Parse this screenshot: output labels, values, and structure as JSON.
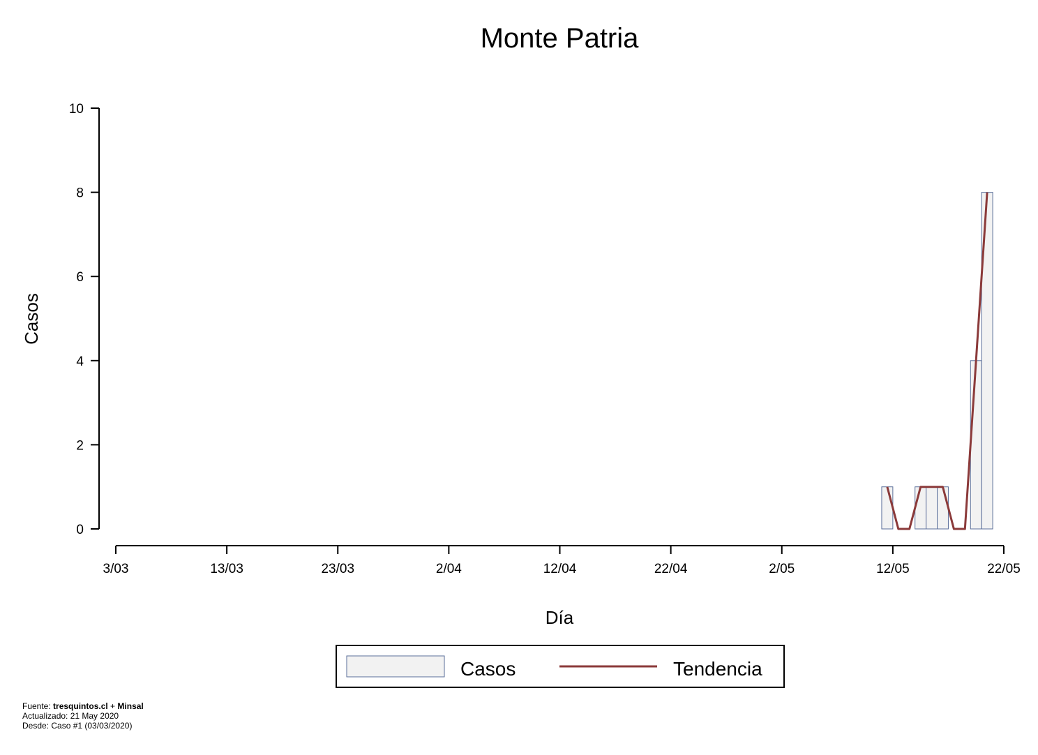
{
  "chart_data": {
    "type": "bar",
    "title": "Monte Patria",
    "xlabel": "Día",
    "ylabel": "Casos",
    "ylim": [
      0,
      10
    ],
    "y_ticks": [
      "0",
      "2",
      "4",
      "6",
      "8",
      "10"
    ],
    "x_ticks": [
      "3/03",
      "13/03",
      "23/03",
      "2/04",
      "12/04",
      "22/04",
      "2/05",
      "12/05",
      "22/05"
    ],
    "x_range_dates": [
      "2020-03-03",
      "2020-05-22"
    ],
    "dates": [
      "2020-05-11",
      "2020-05-12",
      "2020-05-13",
      "2020-05-14",
      "2020-05-15",
      "2020-05-16",
      "2020-05-17",
      "2020-05-18",
      "2020-05-19",
      "2020-05-20"
    ],
    "series": [
      {
        "name": "Casos",
        "values": [
          1,
          0,
          0,
          1,
          1,
          1,
          0,
          0,
          4,
          8
        ],
        "color": "#f2f2f2",
        "stroke": "#5a6e99"
      },
      {
        "name": "Tendencia",
        "values": [
          1,
          0,
          0,
          1,
          1,
          1,
          0,
          0,
          4,
          8
        ],
        "color": "#8b3a3a"
      }
    ],
    "legend": {
      "position": "bottom",
      "items": [
        "Casos",
        "Tendencia"
      ]
    },
    "grid": false
  },
  "footer": {
    "line1_prefix": "Fuente: ",
    "line1_source": "tresquintos.cl",
    "line1_sep": " + ",
    "line1_source2": "Minsal",
    "line2": "Actualizado: 21 May 2020",
    "line3": "Desde: Caso #1  (03/03/2020)"
  }
}
